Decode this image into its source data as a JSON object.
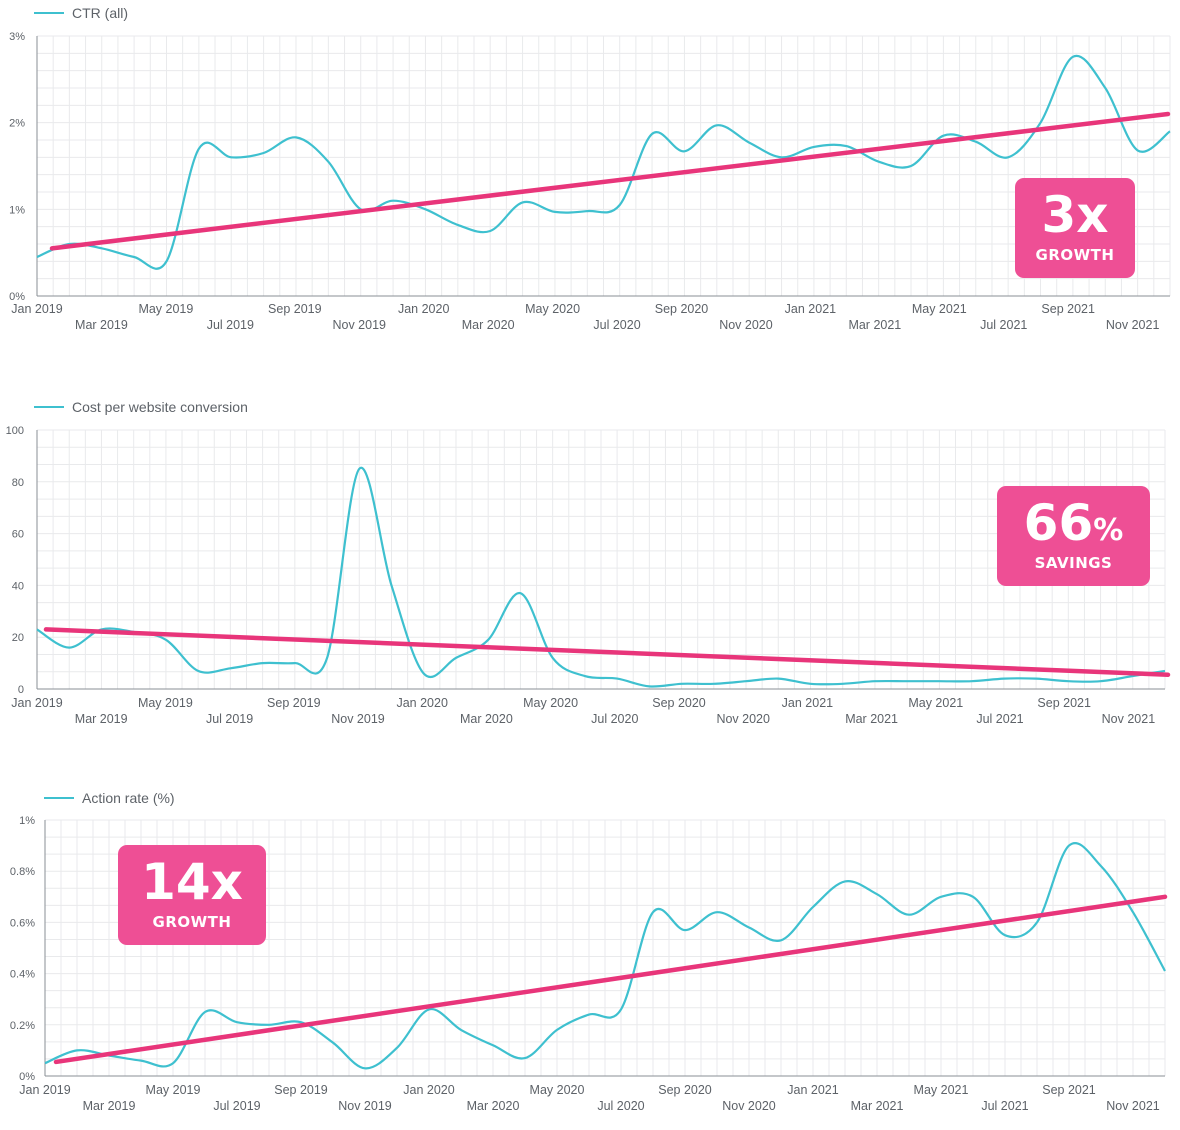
{
  "colors": {
    "series": "#3ec0cf",
    "trend": "#e8357a",
    "badge": "#ee4f95",
    "grid": "#e9eaec",
    "axis": "#8a8f96",
    "label": "#5d6268"
  },
  "chart_data": [
    {
      "type": "line",
      "legend": "CTR (all)",
      "yticks": [
        "0%",
        "1%",
        "2%",
        "3%"
      ],
      "ylim": [
        0,
        3
      ],
      "xlim": [
        "2019-01",
        "2021-12"
      ],
      "xticks": [
        "Jan 2019",
        "Mar 2019",
        "May 2019",
        "Jul 2019",
        "Sep 2019",
        "Nov 2019",
        "Jan 2020",
        "Mar 2020",
        "May 2020",
        "Jul 2020",
        "Sep 2020",
        "Nov 2020",
        "Jan 2021",
        "Mar 2021",
        "May 2021",
        "Jul 2021",
        "Sep 2021",
        "Nov 2021"
      ],
      "series": [
        {
          "x": [
            0,
            1,
            2,
            3,
            4,
            5,
            6,
            7,
            8,
            9,
            10,
            11,
            12,
            13,
            14,
            15,
            16,
            17,
            18,
            19,
            20,
            21,
            22,
            23,
            24,
            25,
            26,
            27,
            28,
            29,
            30,
            31,
            32,
            33,
            34,
            35
          ],
          "values": [
            0.45,
            0.6,
            0.55,
            0.45,
            0.4,
            1.7,
            1.6,
            1.65,
            1.83,
            1.55,
            1.0,
            1.1,
            1.0,
            0.82,
            0.75,
            1.08,
            0.97,
            0.98,
            1.05,
            1.87,
            1.67,
            1.97,
            1.77,
            1.6,
            1.72,
            1.73,
            1.55,
            1.5,
            1.85,
            1.78,
            1.6,
            2.0,
            2.76,
            2.4,
            1.68,
            1.9
          ]
        }
      ],
      "trend": {
        "start": 0.55,
        "end": 2.1
      },
      "badge": {
        "big": "3x",
        "small": "GROWTH"
      }
    },
    {
      "type": "line",
      "legend": "Cost per website conversion",
      "yticks": [
        "0",
        "20",
        "40",
        "60",
        "80",
        "100"
      ],
      "ylim": [
        0,
        100
      ],
      "xlim": [
        "2019-01",
        "2021-12"
      ],
      "xticks": [
        "Jan 2019",
        "Mar 2019",
        "May 2019",
        "Jul 2019",
        "Sep 2019",
        "Nov 2019",
        "Jan 2020",
        "Mar 2020",
        "May 2020",
        "Jul 2020",
        "Sep 2020",
        "Nov 2020",
        "Jan 2021",
        "Mar 2021",
        "May 2021",
        "Jul 2021",
        "Sep 2021",
        "Nov 2021"
      ],
      "series": [
        {
          "x": [
            0,
            1,
            2,
            3,
            4,
            5,
            6,
            7,
            8,
            9,
            10,
            11,
            12,
            13,
            14,
            15,
            16,
            17,
            18,
            19,
            20,
            21,
            22,
            23,
            24,
            25,
            26,
            27,
            28,
            29,
            30,
            31,
            32,
            33,
            34,
            35
          ],
          "values": [
            23,
            16,
            23,
            22,
            19,
            7,
            8,
            10,
            10,
            12,
            85,
            40,
            6,
            12,
            19,
            37,
            12,
            5,
            4,
            1,
            2,
            2,
            3,
            4,
            2,
            2,
            3,
            3,
            3,
            3,
            4,
            4,
            3,
            3,
            5,
            7
          ]
        }
      ],
      "trend": {
        "start": 23,
        "end": 5.5
      },
      "badge": {
        "big": "66",
        "big_suffix": "%",
        "small": "SAVINGS"
      }
    },
    {
      "type": "line",
      "legend": "Action rate (%)",
      "yticks": [
        "0%",
        "0.2%",
        "0.4%",
        "0.6%",
        "0.8%",
        "1%"
      ],
      "ylim": [
        0,
        1
      ],
      "xlim": [
        "2019-01",
        "2021-12"
      ],
      "xticks": [
        "Jan 2019",
        "Mar 2019",
        "May 2019",
        "Jul 2019",
        "Sep 2019",
        "Nov 2019",
        "Jan 2020",
        "Mar 2020",
        "May 2020",
        "Jul 2020",
        "Sep 2020",
        "Nov 2020",
        "Jan 2021",
        "Mar 2021",
        "May 2021",
        "Jul 2021",
        "Sep 2021",
        "Nov 2021"
      ],
      "series": [
        {
          "x": [
            0,
            1,
            2,
            3,
            4,
            5,
            6,
            7,
            8,
            9,
            10,
            11,
            12,
            13,
            14,
            15,
            16,
            17,
            18,
            19,
            20,
            21,
            22,
            23,
            24,
            25,
            26,
            27,
            28,
            29,
            30,
            31,
            32,
            33,
            34,
            35
          ],
          "values": [
            0.05,
            0.1,
            0.08,
            0.06,
            0.05,
            0.25,
            0.21,
            0.2,
            0.21,
            0.13,
            0.03,
            0.11,
            0.26,
            0.18,
            0.12,
            0.07,
            0.18,
            0.24,
            0.26,
            0.64,
            0.57,
            0.64,
            0.58,
            0.53,
            0.66,
            0.76,
            0.71,
            0.63,
            0.7,
            0.7,
            0.55,
            0.6,
            0.9,
            0.82,
            0.64,
            0.41
          ]
        }
      ],
      "trend": {
        "start": 0.055,
        "end": 0.7
      },
      "badge": {
        "big": "14x",
        "small": "GROWTH"
      }
    }
  ]
}
